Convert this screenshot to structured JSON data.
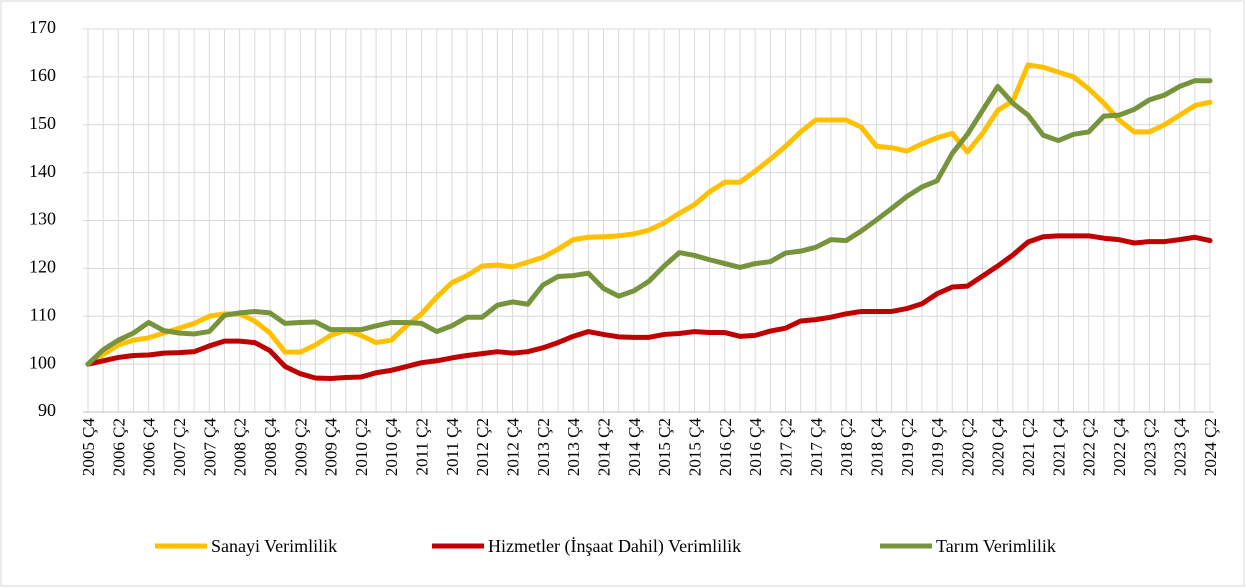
{
  "chart_data": {
    "type": "line",
    "categories": [
      "2005 Ç4",
      null,
      "2006 Ç2",
      null,
      "2006 Ç4",
      null,
      "2007 Ç2",
      null,
      "2007 Ç4",
      null,
      "2008 Ç2",
      null,
      "2008 Ç4",
      null,
      "2009 Ç2",
      null,
      "2009 Ç4",
      null,
      "2010 Ç2",
      null,
      "2010 Ç4",
      null,
      "2011 Ç2",
      null,
      "2011 Ç4",
      null,
      "2012 Ç2",
      null,
      "2012 Ç4",
      null,
      "2013 Ç2",
      null,
      "2013 Ç4",
      null,
      "2014 Ç2",
      null,
      "2014 Ç4",
      null,
      "2015 Ç2",
      null,
      "2015 Ç4",
      null,
      "2016 Ç2",
      null,
      "2016 Ç4",
      null,
      "2017 Ç2",
      null,
      "2017 Ç4",
      null,
      "2018 Ç2",
      null,
      "2018 Ç4",
      null,
      "2019 Ç2",
      null,
      "2019 Ç4",
      null,
      "2020 Ç2",
      null,
      "2020 Ç4",
      null,
      "2021 Ç2",
      null,
      "2021 Ç4",
      null,
      "2022 Ç2",
      null,
      "2022 Ç4",
      null,
      "2023 Ç2",
      null,
      "2023 Ç4",
      null,
      "2024 Ç2"
    ],
    "series": [
      {
        "name": "Sanayi Verimlilik",
        "color": "#ffc000",
        "values": [
          100,
          102,
          104,
          105,
          105.5,
          106.5,
          107.5,
          108.5,
          110,
          110.5,
          110.5,
          109,
          106.5,
          102.5,
          102.5,
          104,
          106,
          107,
          106,
          104.5,
          105,
          108,
          110.5,
          114,
          117,
          118.5,
          120.5,
          120.7,
          120.3,
          121.3,
          122.3,
          124,
          126,
          126.5,
          126.6,
          126.8,
          127.2,
          128,
          129.5,
          131.5,
          133.3,
          136,
          138,
          138,
          140.3,
          142.8,
          145.5,
          148.5,
          151,
          151,
          151,
          149.5,
          145.5,
          145.2,
          144.5,
          146,
          147.3,
          148.2,
          144.3,
          148.2,
          153,
          155,
          162.5,
          162,
          161,
          160,
          157.5,
          154.5,
          151,
          148.5,
          148.5,
          150,
          152,
          154,
          154.7
        ]
      },
      {
        "name": "Hizmetler (İnşaat Dahil) Verimlilik",
        "color": "#c00000",
        "values": [
          100,
          100.7,
          101.4,
          101.8,
          101.9,
          102.3,
          102.4,
          102.6,
          103.8,
          104.8,
          104.8,
          104.5,
          102.8,
          99.5,
          98,
          97.1,
          97,
          97.2,
          97.3,
          98.2,
          98.7,
          99.5,
          100.3,
          100.7,
          101.3,
          101.8,
          102.2,
          102.6,
          102.3,
          102.6,
          103.4,
          104.5,
          105.8,
          106.8,
          106.2,
          105.7,
          105.6,
          105.6,
          106.2,
          106.4,
          106.8,
          106.6,
          106.6,
          105.8,
          106,
          106.9,
          107.5,
          109,
          109.3,
          109.8,
          110.5,
          111,
          111,
          111,
          111.6,
          112.6,
          114.7,
          116.1,
          116.3,
          118.4,
          120.5,
          122.8,
          125.5,
          126.6,
          126.8,
          126.8,
          126.8,
          126.3,
          126,
          125.3,
          125.6,
          125.6,
          126,
          126.5,
          125.8
        ]
      },
      {
        "name": "Tarım Verimlilik",
        "color": "#77933c",
        "values": [
          100,
          103,
          105,
          106.5,
          108.7,
          107,
          106.5,
          106.3,
          106.8,
          110.2,
          110.7,
          111,
          110.7,
          108.5,
          108.7,
          108.8,
          107.2,
          107.2,
          107.2,
          108,
          108.7,
          108.7,
          108.5,
          106.8,
          108,
          109.8,
          109.8,
          112.3,
          113,
          112.5,
          116.5,
          118.3,
          118.5,
          119,
          115.8,
          114.2,
          115.3,
          117.3,
          120.5,
          123.3,
          122.7,
          121.8,
          121,
          120.2,
          121,
          121.4,
          123.2,
          123.6,
          124.4,
          126,
          125.8,
          127.8,
          130.1,
          132.5,
          135,
          137,
          138.3,
          144,
          148,
          153,
          158,
          154.5,
          152,
          147.8,
          146.7,
          148,
          148.5,
          151.8,
          152,
          153.2,
          155.2,
          156.2,
          158,
          159.2,
          159.2
        ]
      }
    ],
    "ylim": [
      90,
      170
    ],
    "yticks": [
      90,
      100,
      110,
      120,
      130,
      140,
      150,
      160,
      170
    ],
    "grid": true,
    "legend": "bottom"
  }
}
